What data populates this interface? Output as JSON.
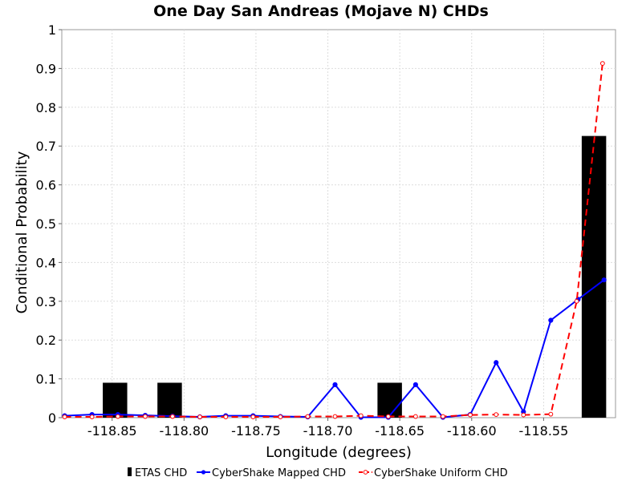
{
  "chart_data": {
    "type": "bar+line",
    "title": "One Day San Andreas (Mojave N) CHDs",
    "xlabel": "Longitude (degrees)",
    "ylabel": "Conditional Probability",
    "xlim": [
      -118.885,
      -118.5
    ],
    "ylim": [
      0,
      1
    ],
    "x_ticks": [
      -118.85,
      -118.8,
      -118.75,
      -118.7,
      -118.65,
      -118.6,
      -118.55
    ],
    "x_tick_labels": [
      "-118.85",
      "-118.80",
      "-118.75",
      "-118.70",
      "-118.65",
      "-118.60",
      "-118.55"
    ],
    "y_ticks": [
      0,
      0.1,
      0.2,
      0.3,
      0.4,
      0.5,
      0.6,
      0.7,
      0.8,
      0.9,
      1
    ],
    "y_tick_labels": [
      "0",
      "0.1",
      "0.2",
      "0.3",
      "0.4",
      "0.5",
      "0.6",
      "0.7",
      "0.8",
      "0.9",
      "1"
    ],
    "grid": true,
    "legend_position": "bottom",
    "bars": {
      "name": "ETAS CHD",
      "color": "#000000",
      "width": 0.017,
      "x": [
        -118.848,
        -118.81,
        -118.657,
        -118.515
      ],
      "values": [
        0.09,
        0.09,
        0.09,
        0.726
      ]
    },
    "series": [
      {
        "name": "CyberShake Mapped CHD",
        "color": "#0000ff",
        "style": "solid",
        "marker": "filled-circle",
        "x": [
          -118.883,
          -118.864,
          -118.846,
          -118.827,
          -118.808,
          -118.789,
          -118.771,
          -118.752,
          -118.733,
          -118.714,
          -118.695,
          -118.677,
          -118.658,
          -118.639,
          -118.62,
          -118.601,
          -118.583,
          -118.564,
          -118.545,
          -118.526,
          -118.508
        ],
        "values": [
          0.005,
          0.008,
          0.008,
          0.006,
          0.004,
          0.002,
          0.005,
          0.005,
          0.003,
          0.002,
          0.085,
          0.001,
          0.001,
          0.085,
          0.001,
          0.008,
          0.142,
          0.015,
          0.251,
          0.305,
          0.355
        ]
      },
      {
        "name": "CyberShake Uniform CHD",
        "color": "#ff0000",
        "style": "dashed",
        "marker": "open-circle",
        "x": [
          -118.883,
          -118.864,
          -118.846,
          -118.827,
          -118.808,
          -118.789,
          -118.771,
          -118.752,
          -118.733,
          -118.714,
          -118.695,
          -118.677,
          -118.658,
          -118.639,
          -118.62,
          -118.601,
          -118.583,
          -118.564,
          -118.545,
          -118.527,
          -118.509
        ],
        "values": [
          0.002,
          0.002,
          0.003,
          0.003,
          0.003,
          0.002,
          0.002,
          0.002,
          0.002,
          0.003,
          0.003,
          0.005,
          0.003,
          0.003,
          0.003,
          0.007,
          0.008,
          0.007,
          0.009,
          0.3,
          0.913
        ]
      }
    ]
  }
}
